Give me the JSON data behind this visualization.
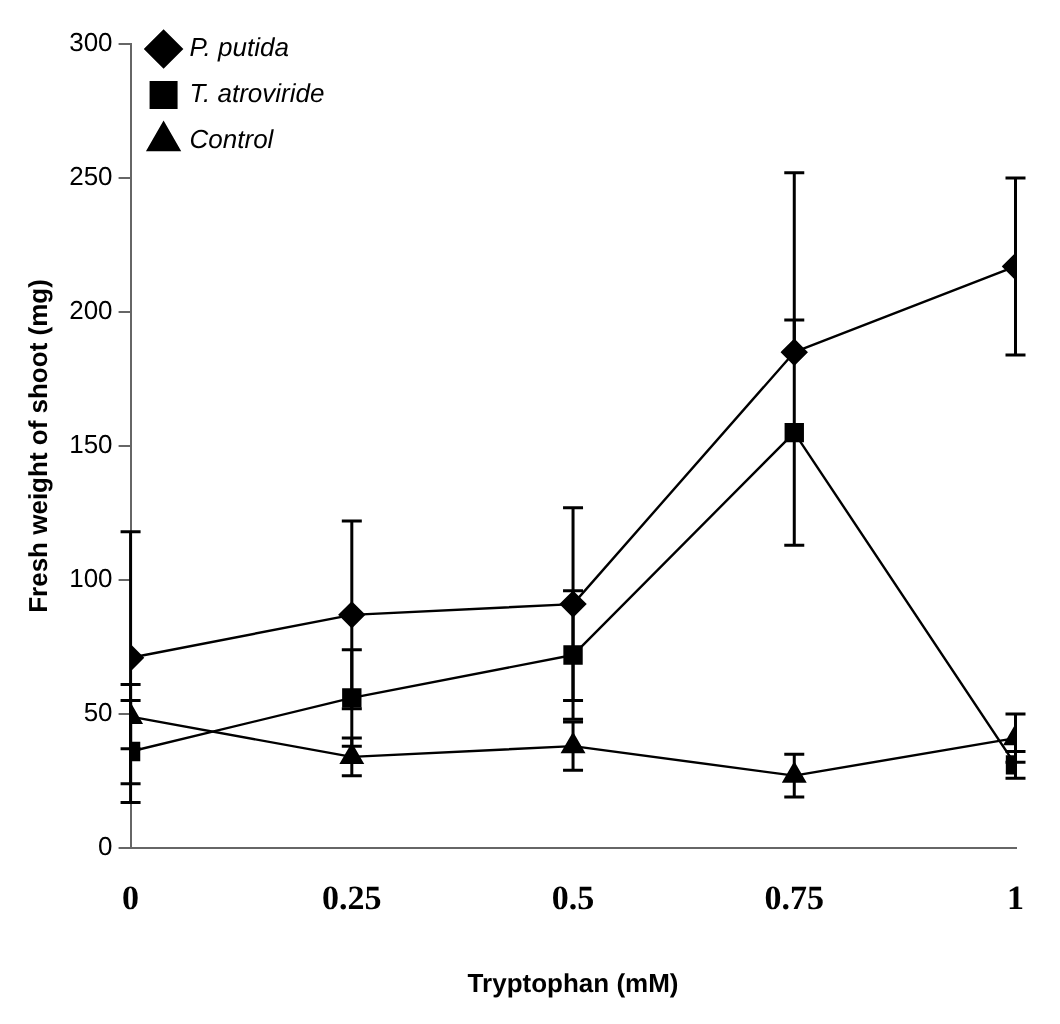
{
  "chart_data": {
    "type": "line",
    "xlabel": "Tryptophan (mM)",
    "ylabel": "Fresh weight of shoot (mg)",
    "x": [
      0,
      0.25,
      0.5,
      0.75,
      1
    ],
    "xlim": [
      0,
      1
    ],
    "xticks": [
      0,
      0.25,
      0.5,
      0.75,
      1
    ],
    "ylim": [
      0,
      300
    ],
    "yticks": [
      0,
      50,
      100,
      150,
      200,
      250,
      300
    ],
    "grid": false,
    "legend": "top left",
    "series": [
      {
        "name": "P. putida",
        "color": "#000000",
        "marker": "diamond",
        "values": [
          71,
          87,
          91,
          185,
          217
        ],
        "errors": [
          47,
          35,
          36,
          [
            185,
            252
          ],
          33
        ]
      },
      {
        "name": "T. atroviride",
        "color": "#000000",
        "marker": "square",
        "values": [
          36,
          56,
          72,
          155,
          31
        ],
        "errors": [
          19,
          18,
          24,
          42,
          5
        ]
      },
      {
        "name": "Control",
        "color": "#000000",
        "marker": "triangle",
        "values": [
          49,
          34,
          38,
          27,
          41
        ],
        "errors": [
          12,
          7,
          9,
          8,
          9
        ]
      }
    ]
  }
}
